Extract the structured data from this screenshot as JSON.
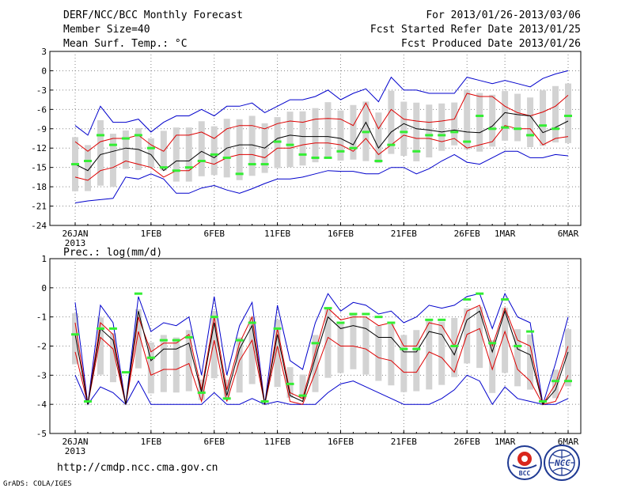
{
  "header": {
    "title": "DERF/NCC/BCC Monthly Forecast",
    "member_size": "Member Size=40",
    "variable": "Mean Surf. Temp.: °C",
    "forecast_period": "For 2013/01/26-2013/03/06",
    "start_date": "Fcst Started Refer Date 2013/01/25",
    "produced_date": "Fcst Produced Date 2013/01/26"
  },
  "footer": {
    "url": "http://cmdp.ncc.cma.gov.cn",
    "grads": "GrADS: COLA/IGES",
    "logo1_text": "BCC",
    "logo2_text": "NCC"
  },
  "colors": {
    "mean": "#000000",
    "spread": "#dd0000",
    "extreme": "#0000cc",
    "bar": "#d3d3d3",
    "marker": "#33ee33",
    "grid": "#888888"
  },
  "chart_data": [
    {
      "type": "line",
      "title": "Mean Surf. Temp.: °C",
      "x_tick_labels": [
        "26JAN",
        "1FEB",
        "6FEB",
        "11FEB",
        "16FEB",
        "21FEB",
        "26FEB",
        "1MAR",
        "6MAR"
      ],
      "x_tick_days": [
        0,
        6,
        11,
        16,
        21,
        26,
        31,
        34,
        39
      ],
      "x_year_label": "2013",
      "ylim": [
        -24,
        3
      ],
      "y_ticks": [
        3,
        0,
        -3,
        -6,
        -9,
        -12,
        -15,
        -18,
        -21,
        -24
      ],
      "series": [
        {
          "name": "max",
          "values": [
            -20.5,
            -20.2,
            -20,
            -19.8,
            -16.5,
            -16.8,
            -16,
            -16.8,
            -19,
            -19,
            -18.2,
            -17.8,
            -18.5,
            -19,
            -18.3,
            -17.5,
            -16.8,
            -16.8,
            -16.5,
            -16,
            -15.5,
            -15.6,
            -15.6,
            -16,
            -16,
            -15,
            -15,
            -16,
            -15.2,
            -14,
            -13,
            -14.2,
            -14.5,
            -13.5,
            -12.5,
            -12.5,
            -13.5,
            -13.5,
            -13,
            -13.2
          ]
        },
        {
          "name": "spread_high",
          "values": [
            -11,
            -12.5,
            -11,
            -10.5,
            -10.5,
            -10,
            -11.5,
            -12.5,
            -10,
            -10,
            -9.5,
            -10.5,
            -9,
            -8.5,
            -8.5,
            -9,
            -8.2,
            -7.8,
            -8,
            -7.5,
            -7.4,
            -7.5,
            -8.5,
            -5,
            -9,
            -6,
            -7.5,
            -7.8,
            -8,
            -7.8,
            -7.5,
            -3.5,
            -4,
            -4,
            -5.5,
            -6.5,
            -7,
            -6.4,
            -5.5,
            -3.8
          ]
        },
        {
          "name": "mean",
          "values": [
            -14.5,
            -15.5,
            -13,
            -12.5,
            -12,
            -12.2,
            -13,
            -15.5,
            -14,
            -14,
            -12.5,
            -13.5,
            -12,
            -11.5,
            -11.5,
            -12,
            -10.5,
            -10,
            -10.2,
            -10.2,
            -10.2,
            -10.5,
            -11.5,
            -8,
            -12,
            -9.5,
            -8.2,
            -9,
            -9.2,
            -9.5,
            -9.2,
            -9.5,
            -9.6,
            -8.6,
            -6.5,
            -6.8,
            -7,
            -9.6,
            -8.8,
            -7.8
          ]
        },
        {
          "name": "spread_low",
          "values": [
            -16.5,
            -17,
            -15.5,
            -15,
            -14,
            -14.5,
            -15,
            -16.5,
            -15.5,
            -15.5,
            -14,
            -14.5,
            -13.5,
            -13,
            -13,
            -13.5,
            -12,
            -12,
            -11.5,
            -11.2,
            -11.2,
            -11.5,
            -12.5,
            -10.5,
            -13,
            -11.5,
            -10,
            -10.5,
            -10.5,
            -11,
            -10.5,
            -12,
            -11.5,
            -11,
            -8.5,
            -9,
            -9,
            -11.5,
            -10.5,
            -10.2
          ]
        },
        {
          "name": "min",
          "values": [
            -8.5,
            -10,
            -5.5,
            -8,
            -8,
            -7.5,
            -9.5,
            -8,
            -7,
            -7,
            -6,
            -7,
            -5.5,
            -5.5,
            -5,
            -6.5,
            -5.5,
            -4.5,
            -4.5,
            -4,
            -3,
            -4.5,
            -3.5,
            -2.8,
            -4.8,
            -1,
            -3,
            -3,
            -3.5,
            -3.5,
            -3.5,
            -1,
            -1.5,
            -2,
            -1.5,
            -2,
            -2.5,
            -1.2,
            -0.5,
            0
          ]
        },
        {
          "name": "obs",
          "values": [
            -14.5,
            -14,
            -10,
            -11.5,
            -10.5,
            -10,
            -12,
            -15,
            -15.5,
            -15,
            -14,
            -13,
            -13.5,
            -16,
            -14.5,
            -14.5,
            -11,
            -11.5,
            -13,
            -13.5,
            -13.5,
            -12.5,
            -12,
            -9.5,
            -14,
            -11.5,
            -9.5,
            -12.5,
            -10,
            -10,
            -9.5,
            -11,
            -7,
            -9,
            -8.8,
            -9,
            -10,
            -8.5,
            -9,
            -7
          ]
        }
      ]
    },
    {
      "type": "line",
      "title": "Prec.: log(mm/d)",
      "x_tick_labels": [
        "26JAN",
        "1FEB",
        "6FEB",
        "11FEB",
        "16FEB",
        "21FEB",
        "26FEB",
        "1MAR",
        "6MAR"
      ],
      "x_tick_days": [
        0,
        6,
        11,
        16,
        21,
        26,
        31,
        34,
        39
      ],
      "x_year_label": "2013",
      "ylim": [
        -5,
        1
      ],
      "y_ticks": [
        1,
        0,
        -1,
        -2,
        -3,
        -4,
        -5
      ],
      "series": [
        {
          "name": "max",
          "values": [
            -0.5,
            -4,
            -0.6,
            -1.2,
            -4,
            -0.3,
            -1.5,
            -1.2,
            -1.3,
            -1,
            -3,
            -0.3,
            -3,
            -1.3,
            -0.5,
            -4,
            -0.6,
            -2.5,
            -2.8,
            -1.2,
            -0.2,
            -0.8,
            -0.5,
            -0.6,
            -0.9,
            -0.8,
            -1.2,
            -1,
            -0.6,
            -0.7,
            -0.6,
            -0.3,
            -0.2,
            -1.4,
            -0.2,
            -1,
            -1.2,
            -4,
            -2.6,
            -1
          ]
        },
        {
          "name": "spread_high",
          "values": [
            -1.2,
            -4,
            -1.2,
            -1.6,
            -4,
            -1,
            -2.2,
            -1.9,
            -1.9,
            -1.6,
            -3.5,
            -1,
            -3.5,
            -1.9,
            -1,
            -4,
            -1.4,
            -3.6,
            -3.8,
            -2.2,
            -0.7,
            -1.1,
            -1,
            -1,
            -1.3,
            -1.2,
            -2,
            -2,
            -1.2,
            -1.3,
            -2,
            -0.8,
            -0.6,
            -2,
            -0.7,
            -1.8,
            -2,
            -4,
            -3.3,
            -2
          ]
        },
        {
          "name": "mean",
          "values": [
            -1.6,
            -4,
            -1.4,
            -1.8,
            -4,
            -0.8,
            -2.5,
            -2.1,
            -2.1,
            -1.9,
            -3.6,
            -1.2,
            -3.7,
            -2.1,
            -1.3,
            -4,
            -1.6,
            -3.7,
            -3.9,
            -2.4,
            -1,
            -1.4,
            -1.3,
            -1.4,
            -1.7,
            -1.7,
            -2.2,
            -2.2,
            -1.5,
            -1.6,
            -2.3,
            -1.1,
            -0.8,
            -2.2,
            -0.8,
            -2.1,
            -2.3,
            -4,
            -3.5,
            -2.2
          ]
        },
        {
          "name": "spread_low",
          "values": [
            -2.2,
            -4,
            -1.7,
            -2.1,
            -4,
            -1.5,
            -3,
            -2.8,
            -2.8,
            -2.6,
            -3.9,
            -1.8,
            -3.9,
            -2.5,
            -1.8,
            -4,
            -2,
            -3.9,
            -4,
            -2.9,
            -1.7,
            -2,
            -2,
            -2.1,
            -2.4,
            -2.5,
            -2.9,
            -2.9,
            -2.2,
            -2.4,
            -2.9,
            -1.6,
            -1.4,
            -2.8,
            -1.5,
            -2.8,
            -3.2,
            -4,
            -3.9,
            -3
          ]
        },
        {
          "name": "min",
          "values": [
            -3,
            -4,
            -3.4,
            -3.6,
            -4,
            -3.2,
            -4,
            -4,
            -4,
            -4,
            -4,
            -3.6,
            -4,
            -4,
            -3.8,
            -4,
            -3.9,
            -4,
            -4,
            -4,
            -3.6,
            -3.3,
            -3.2,
            -3.4,
            -3.6,
            -3.8,
            -4,
            -4,
            -4,
            -3.8,
            -3.5,
            -3,
            -3.2,
            -4,
            -3.4,
            -3.8,
            -3.9,
            -4,
            -4,
            -3.8
          ]
        },
        {
          "name": "obs",
          "values": [
            -1.6,
            -3.9,
            -1.4,
            -1.4,
            -2.9,
            -0.2,
            -2.4,
            -1.8,
            -1.8,
            -1.7,
            -3.6,
            -1,
            -3.8,
            -1.8,
            -1.2,
            -3.9,
            -1.4,
            -3.3,
            -3.7,
            -1.9,
            -0.7,
            -1.2,
            -0.9,
            -0.9,
            -1,
            -1.2,
            -2.1,
            -2.1,
            -1.1,
            -1.1,
            -2,
            -0.4,
            -0.2,
            -1.9,
            -0.4,
            -2,
            -1.5,
            -3.9,
            -3.2,
            -3.2
          ]
        }
      ]
    }
  ]
}
